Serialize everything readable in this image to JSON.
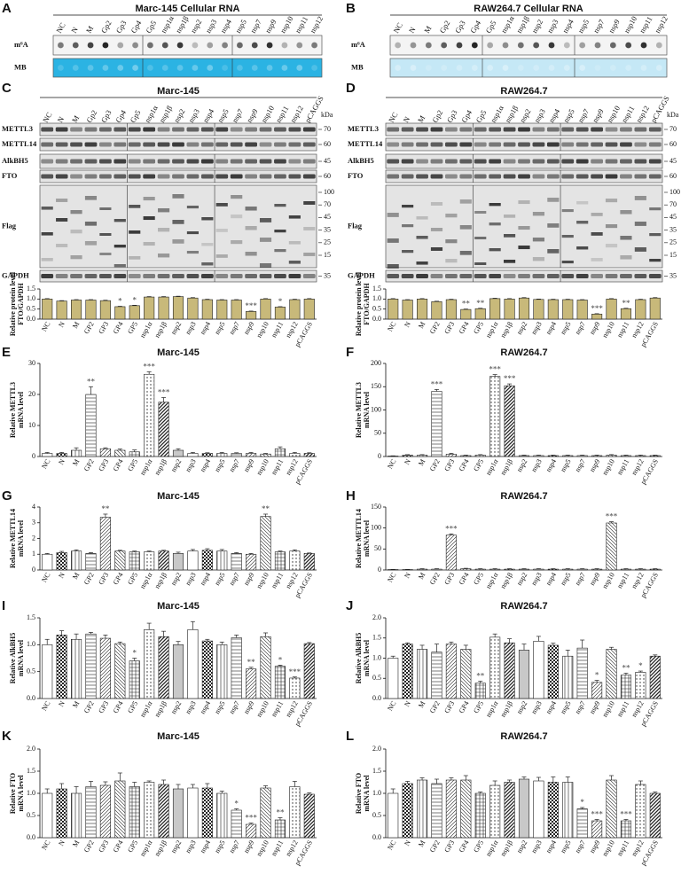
{
  "blots": [
    {
      "panel": "A",
      "title": "Marc-145 Cellular RNA",
      "lanes": [
        "NC",
        "N",
        "M",
        "Gp2",
        "Gp3",
        "Gp4",
        "Gp5",
        "nsp1α",
        "nsp1β",
        "nsp2",
        "nsp3",
        "nsp4",
        "nsp5",
        "nsp7",
        "nsp9",
        "nsp10",
        "nsp11",
        "nsp12"
      ],
      "rows": [
        {
          "label": "m⁶A"
        },
        {
          "label": "MB"
        }
      ]
    },
    {
      "panel": "B",
      "title": "RAW264.7 Cellular RNA",
      "lanes": [
        "NC",
        "N",
        "M",
        "Gp2",
        "Gp3",
        "Gp4",
        "Gp5",
        "nsp1α",
        "nsp1β",
        "nsp2",
        "nsp3",
        "nsp4",
        "nsp5",
        "nsp7",
        "nsp9",
        "nsp10",
        "nsp11",
        "nsp12"
      ],
      "rows": [
        {
          "label": "m⁶A"
        },
        {
          "label": "MB"
        }
      ]
    },
    {
      "panel": "C",
      "title": "Marc-145",
      "unit": "kDa",
      "lanes": [
        "NC",
        "N",
        "M",
        "Gp2",
        "Gp3",
        "Gp4",
        "Gp5",
        "nsp1α",
        "nsp1β",
        "nsp2",
        "nsp3",
        "nsp4",
        "nsp5",
        "nsp7",
        "nsp9",
        "nsp10",
        "nsp11",
        "nsp12",
        "pCAGGS"
      ],
      "rows": [
        {
          "label": "METTL3",
          "markers": [
            70
          ]
        },
        {
          "label": "METTL14",
          "markers": [
            60
          ]
        },
        {
          "label": "AlkBH5",
          "markers": [
            45
          ]
        },
        {
          "label": "FTO",
          "markers": [
            60
          ]
        },
        {
          "label": "Flag",
          "markers": [
            100,
            70,
            45,
            35,
            25,
            15
          ]
        },
        {
          "label": "GAPDH",
          "markers": [
            35
          ]
        }
      ]
    },
    {
      "panel": "D",
      "title": "RAW264.7",
      "unit": "kDa",
      "lanes": [
        "NC",
        "N",
        "M",
        "Gp2",
        "Gp3",
        "Gp4",
        "Gp5",
        "nsp1α",
        "nsp1β",
        "nsp2",
        "nsp3",
        "nsp4",
        "nsp5",
        "nsp7",
        "nsp9",
        "nsp10",
        "nsp11",
        "nsp12",
        "pCAGGS"
      ],
      "rows": [
        {
          "label": "METTL3",
          "markers": [
            70
          ]
        },
        {
          "label": "METTL14",
          "markers": [
            60
          ]
        },
        {
          "label": "AlkBH5",
          "markers": [
            45
          ]
        },
        {
          "label": "FTO",
          "markers": [
            60
          ]
        },
        {
          "label": "Flag",
          "markers": [
            100,
            70,
            45,
            35,
            25,
            15
          ]
        },
        {
          "label": "GAPDH",
          "markers": [
            35
          ]
        }
      ]
    }
  ],
  "chart_data": [
    {
      "type": "bar",
      "ylabel": [
        "Relative protein level",
        "FTO/GAPDH"
      ],
      "color": "#c8b97a",
      "categories": [
        "NC",
        "N",
        "M",
        "GP2",
        "GP3",
        "GP4",
        "GP5",
        "nsp1α",
        "nsp1β",
        "nsp2",
        "nsp3",
        "nsp4",
        "nsp5",
        "nsp7",
        "nsp9",
        "nsp10",
        "nsp11",
        "nsp12",
        "pCAGGS"
      ],
      "values": [
        1.0,
        0.9,
        0.95,
        0.95,
        0.92,
        0.62,
        0.67,
        1.1,
        1.1,
        1.12,
        1.05,
        0.97,
        0.95,
        0.95,
        0.38,
        1.0,
        0.6,
        0.97,
        1.0
      ],
      "errors": [
        0.02,
        0.02,
        0.02,
        0.02,
        0.02,
        0.02,
        0.02,
        0.02,
        0.02,
        0.02,
        0.02,
        0.02,
        0.02,
        0.02,
        0.02,
        0.02,
        0.02,
        0.02,
        0.02
      ],
      "significance": [
        null,
        null,
        null,
        null,
        null,
        "*",
        "*",
        null,
        null,
        null,
        null,
        null,
        null,
        null,
        "***",
        null,
        "*",
        null,
        null
      ],
      "ylim": [
        0,
        1.5
      ],
      "yticks": [
        {
          "value": 0,
          "label": "0.0"
        },
        0.5,
        {
          "value": 1,
          "label": "1.0"
        },
        1.5
      ]
    },
    {
      "type": "bar",
      "ylabel": [
        "Relative protein level",
        "FTO/GAPDH"
      ],
      "color": "#c8b97a",
      "categories": [
        "NC",
        "N",
        "M",
        "GP2",
        "GP3",
        "GP4",
        "GP5",
        "nsp1α",
        "nsp1β",
        "nsp2",
        "nsp3",
        "nsp4",
        "nsp5",
        "nsp7",
        "nsp9",
        "nsp10",
        "nsp11",
        "nsp12",
        "pCAGGS"
      ],
      "values": [
        1.0,
        0.95,
        1.0,
        0.87,
        0.97,
        0.48,
        0.52,
        1.02,
        1.0,
        1.05,
        0.98,
        0.97,
        0.97,
        0.95,
        0.25,
        1.0,
        0.52,
        0.97,
        1.05
      ],
      "errors": [
        0.02,
        0.02,
        0.02,
        0.02,
        0.02,
        0.02,
        0.02,
        0.02,
        0.02,
        0.02,
        0.02,
        0.02,
        0.02,
        0.02,
        0.02,
        0.02,
        0.02,
        0.02,
        0.02
      ],
      "significance": [
        null,
        null,
        null,
        null,
        null,
        "**",
        "**",
        null,
        null,
        null,
        null,
        null,
        null,
        null,
        "***",
        null,
        "**",
        null,
        null
      ],
      "ylim": [
        0,
        1.5
      ],
      "yticks": [
        {
          "value": 0,
          "label": "0.0"
        },
        0.5,
        {
          "value": 1,
          "label": "1.0"
        },
        1.5
      ]
    },
    {
      "type": "bar",
      "panel": "E",
      "title": "Marc-145",
      "ylabel": [
        "Relative METTL3",
        "mRNA level"
      ],
      "color": "#222222",
      "pattern": true,
      "categories": [
        "NC",
        "N",
        "M",
        "GP2",
        "GP3",
        "GP4",
        "GP5",
        "nsp1α",
        "nsp1β",
        "nsp2",
        "nsp3",
        "nsp4",
        "nsp5",
        "nsp7",
        "nsp9",
        "nsp10",
        "nsp11",
        "nsp12",
        "pCAGGS"
      ],
      "values": [
        1,
        1,
        2,
        20,
        2.5,
        2,
        1.5,
        26.5,
        17.5,
        2,
        1,
        1,
        1,
        1,
        1,
        0.8,
        2.5,
        1,
        1
      ],
      "errors": [
        0.3,
        0.3,
        0.8,
        2.5,
        0.3,
        0.4,
        0.6,
        0.8,
        1.5,
        0.5,
        0.3,
        0.2,
        0.3,
        0.2,
        0.3,
        0.2,
        0.6,
        0.3,
        0.2
      ],
      "significance": [
        null,
        null,
        null,
        "**",
        null,
        null,
        null,
        "***",
        "***",
        null,
        null,
        null,
        null,
        null,
        null,
        null,
        null,
        null,
        null
      ],
      "ylim": [
        0,
        30
      ],
      "yticks": [
        0,
        10,
        20,
        30
      ]
    },
    {
      "type": "bar",
      "panel": "F",
      "title": "RAW264.7",
      "ylabel": [
        "Relative METTL3",
        "mRNA level"
      ],
      "color": "#222222",
      "pattern": true,
      "categories": [
        "NC",
        "N",
        "M",
        "GP2",
        "GP3",
        "GP4",
        "GP5",
        "nsp1α",
        "nsp1β",
        "nsp2",
        "nsp3",
        "nsp4",
        "nsp5",
        "nsp7",
        "nsp9",
        "nsp10",
        "nsp11",
        "nsp12",
        "pCAGGS"
      ],
      "values": [
        1,
        3,
        3,
        140,
        5,
        2,
        3,
        172,
        152,
        2,
        2,
        2,
        2,
        2,
        2,
        3,
        2,
        2,
        2
      ],
      "errors": [
        0.5,
        1,
        1,
        4,
        2,
        1,
        1,
        4,
        4,
        1,
        1,
        1,
        1,
        1,
        1,
        1,
        1,
        1,
        1
      ],
      "significance": [
        null,
        null,
        null,
        "***",
        null,
        null,
        null,
        "***",
        "***",
        null,
        null,
        null,
        null,
        null,
        null,
        null,
        null,
        null,
        null
      ],
      "ylim": [
        0,
        200
      ],
      "yticks": [
        0,
        50,
        100,
        150,
        200
      ]
    },
    {
      "type": "bar",
      "panel": "G",
      "title": "Marc-145",
      "ylabel": [
        "Relative METTL14",
        "mRNA level"
      ],
      "color": "#222222",
      "pattern": true,
      "categories": [
        "NC",
        "N",
        "M",
        "GP2",
        "GP3",
        "GP4",
        "GP5",
        "nsp1α",
        "nsp1β",
        "nsp2",
        "nsp3",
        "nsp4",
        "nsp5",
        "nsp7",
        "nsp9",
        "nsp10",
        "nsp11",
        "nsp12",
        "pCAGGS"
      ],
      "values": [
        1.0,
        1.1,
        1.2,
        1.05,
        3.35,
        1.2,
        1.15,
        1.15,
        1.2,
        1.05,
        1.2,
        1.25,
        1.2,
        1.05,
        1.0,
        3.4,
        1.15,
        1.2,
        1.05
      ],
      "errors": [
        0.05,
        0.08,
        0.08,
        0.05,
        0.2,
        0.05,
        0.05,
        0.05,
        0.05,
        0.08,
        0.1,
        0.1,
        0.1,
        0.05,
        0.05,
        0.15,
        0.05,
        0.08,
        0.03
      ],
      "significance": [
        null,
        null,
        null,
        null,
        "**",
        null,
        null,
        null,
        null,
        null,
        null,
        null,
        null,
        null,
        null,
        "**",
        null,
        null,
        null
      ],
      "ylim": [
        0,
        4
      ],
      "yticks": [
        0,
        1,
        2,
        3,
        4
      ]
    },
    {
      "type": "bar",
      "panel": "H",
      "title": "RAW264.7",
      "ylabel": [
        "Relative METTL14",
        "mRNA level"
      ],
      "color": "#222222",
      "pattern": true,
      "categories": [
        "NC",
        "N",
        "M",
        "GP2",
        "GP3",
        "GP4",
        "GP5",
        "nsp1α",
        "nsp1β",
        "nsp2",
        "nsp3",
        "nsp4",
        "nsp5",
        "nsp7",
        "nsp9",
        "nsp10",
        "nsp11",
        "nsp12",
        "pCAGGS"
      ],
      "values": [
        1,
        1,
        2,
        2,
        83,
        3,
        2,
        2,
        2,
        2,
        2,
        2,
        2,
        2,
        2,
        112,
        2,
        2,
        2
      ],
      "errors": [
        0.5,
        0.5,
        1,
        1,
        3,
        1,
        1,
        1,
        1,
        1,
        1,
        1,
        1,
        1,
        1,
        3,
        1,
        1,
        1
      ],
      "significance": [
        null,
        null,
        null,
        null,
        "***",
        null,
        null,
        null,
        null,
        null,
        null,
        null,
        null,
        null,
        null,
        "***",
        null,
        null,
        null
      ],
      "ylim": [
        0,
        150
      ],
      "yticks": [
        0,
        50,
        100,
        150
      ]
    },
    {
      "type": "bar",
      "panel": "I",
      "title": "Marc-145",
      "ylabel": [
        "Relative AlkBH5",
        "mRNA level"
      ],
      "color": "#222222",
      "pattern": true,
      "categories": [
        "NC",
        "N",
        "M",
        "GP2",
        "GP3",
        "GP4",
        "GP5",
        "nsp1α",
        "nsp1β",
        "nsp2",
        "nsp3",
        "nsp4",
        "nsp5",
        "nsp7",
        "nsp9",
        "nsp10",
        "nsp11",
        "nsp12",
        "pCAGGS"
      ],
      "values": [
        1.0,
        1.18,
        1.1,
        1.2,
        1.12,
        1.02,
        0.7,
        1.28,
        1.15,
        1.0,
        1.28,
        1.07,
        1.0,
        1.13,
        0.55,
        1.15,
        0.6,
        0.38,
        1.02
      ],
      "errors": [
        0.1,
        0.08,
        0.1,
        0.03,
        0.06,
        0.03,
        0.05,
        0.12,
        0.1,
        0.06,
        0.15,
        0.03,
        0.05,
        0.05,
        0.03,
        0.07,
        0.02,
        0.02,
        0.02
      ],
      "significance": [
        null,
        null,
        null,
        null,
        null,
        null,
        "*",
        null,
        null,
        null,
        null,
        null,
        null,
        null,
        "**",
        null,
        "*",
        "***",
        null
      ],
      "ylim": [
        0,
        1.5
      ],
      "yticks": [
        {
          "value": 0,
          "label": "0.0"
        },
        0.5,
        {
          "value": 1,
          "label": "1.0"
        },
        1.5
      ]
    },
    {
      "type": "bar",
      "panel": "J",
      "title": "RAW264.7",
      "ylabel": [
        "Relative AlkBH5",
        "mRNA level"
      ],
      "color": "#222222",
      "pattern": true,
      "categories": [
        "NC",
        "N",
        "M",
        "GP2",
        "GP3",
        "GP4",
        "GP5",
        "nsp1α",
        "nsp1β",
        "nsp2",
        "nsp3",
        "nsp4",
        "nsp5",
        "nsp7",
        "nsp9",
        "nsp10",
        "nsp11",
        "nsp12",
        "pCAGGS"
      ],
      "values": [
        1.0,
        1.35,
        1.22,
        1.15,
        1.35,
        1.22,
        0.38,
        1.52,
        1.38,
        1.2,
        1.42,
        1.32,
        1.05,
        1.25,
        0.4,
        1.22,
        0.58,
        0.65,
        1.05
      ],
      "errors": [
        0.05,
        0.03,
        0.1,
        0.2,
        0.05,
        0.1,
        0.05,
        0.08,
        0.1,
        0.15,
        0.12,
        0.05,
        0.15,
        0.2,
        0.05,
        0.05,
        0.05,
        0.03,
        0.03
      ],
      "significance": [
        null,
        null,
        null,
        null,
        null,
        null,
        "**",
        null,
        null,
        null,
        null,
        null,
        null,
        null,
        "*",
        null,
        "**",
        "*",
        null
      ],
      "ylim": [
        0,
        2
      ],
      "yticks": [
        {
          "value": 0,
          "label": "0.0"
        },
        0.5,
        {
          "value": 1,
          "label": "1.0"
        },
        1.5,
        {
          "value": 2,
          "label": "2.0"
        }
      ]
    },
    {
      "type": "bar",
      "panel": "K",
      "title": "Marc-145",
      "ylabel": [
        "Relative FTO",
        "mRNA level"
      ],
      "color": "#222222",
      "pattern": true,
      "categories": [
        "NC",
        "N",
        "M",
        "GP2",
        "GP3",
        "GP4",
        "GP5",
        "nsp1α",
        "nsp1β",
        "nsp2",
        "nsp3",
        "nsp4",
        "nsp5",
        "nsp7",
        "nsp9",
        "nsp10",
        "nsp11",
        "nsp12",
        "pCAGGS"
      ],
      "values": [
        1.0,
        1.1,
        1.0,
        1.15,
        1.18,
        1.28,
        1.15,
        1.25,
        1.2,
        1.1,
        1.12,
        1.12,
        1.0,
        0.62,
        0.3,
        1.12,
        0.4,
        1.15,
        0.98
      ],
      "errors": [
        0.1,
        0.12,
        0.15,
        0.12,
        0.08,
        0.18,
        0.1,
        0.03,
        0.1,
        0.1,
        0.08,
        0.1,
        0.05,
        0.03,
        0.03,
        0.05,
        0.05,
        0.12,
        0.03
      ],
      "significance": [
        null,
        null,
        null,
        null,
        null,
        null,
        null,
        null,
        null,
        null,
        null,
        null,
        null,
        "*",
        "***",
        null,
        "**",
        null,
        null
      ],
      "ylim": [
        0,
        2
      ],
      "yticks": [
        {
          "value": 0,
          "label": "0.0"
        },
        0.5,
        {
          "value": 1,
          "label": "1.0"
        },
        1.5,
        {
          "value": 2,
          "label": "2.0"
        }
      ]
    },
    {
      "type": "bar",
      "panel": "L",
      "title": "RAW264.7",
      "ylabel": [
        "Relative FTO",
        "mRNA level"
      ],
      "color": "#222222",
      "pattern": true,
      "categories": [
        "NC",
        "N",
        "M",
        "GP2",
        "GP3",
        "GP4",
        "GP5",
        "nsp1α",
        "nsp1β",
        "nsp2",
        "nsp3",
        "nsp4",
        "nsp5",
        "nsp7",
        "nsp9",
        "nsp10",
        "nsp11",
        "nsp12",
        "pCAGGS"
      ],
      "values": [
        1.0,
        1.22,
        1.3,
        1.22,
        1.3,
        1.3,
        1.0,
        1.18,
        1.25,
        1.32,
        1.28,
        1.25,
        1.25,
        0.65,
        0.38,
        1.3,
        0.38,
        1.2,
        1.0
      ],
      "errors": [
        0.1,
        0.05,
        0.05,
        0.1,
        0.05,
        0.1,
        0.03,
        0.1,
        0.05,
        0.05,
        0.08,
        0.12,
        0.12,
        0.03,
        0.03,
        0.1,
        0.03,
        0.08,
        0.03
      ],
      "significance": [
        null,
        null,
        null,
        null,
        null,
        null,
        null,
        null,
        null,
        null,
        null,
        null,
        null,
        "*",
        "***",
        null,
        "***",
        null,
        null
      ],
      "ylim": [
        0,
        2
      ],
      "yticks": [
        {
          "value": 0,
          "label": "0.0"
        },
        0.5,
        {
          "value": 1,
          "label": "1.0"
        },
        1.5,
        {
          "value": 2,
          "label": "2.0"
        }
      ]
    }
  ]
}
